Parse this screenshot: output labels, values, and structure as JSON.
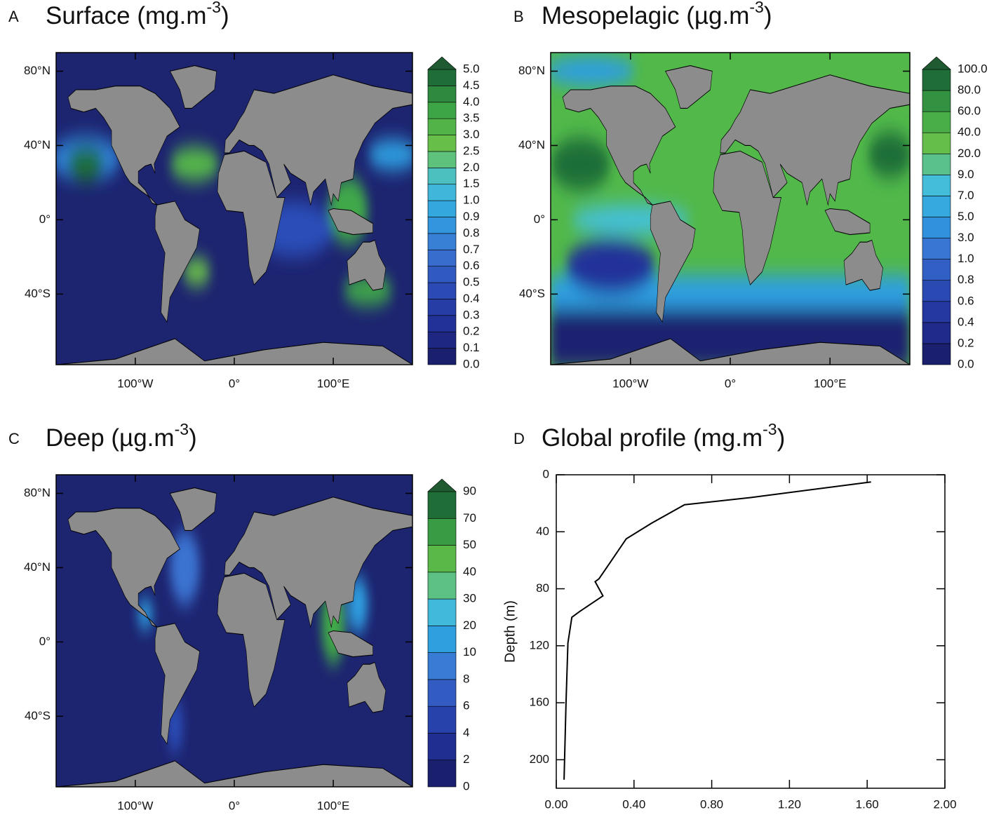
{
  "chart_data": [
    {
      "type": "map",
      "panel": "A",
      "title": "Surface (mg.m",
      "title_superscript": "-3",
      "title_end": ")",
      "xlim": [
        -180,
        180
      ],
      "ylim": [
        -78,
        90
      ],
      "xticks": [
        {
          "value": -100,
          "label": "100°W"
        },
        {
          "value": 0,
          "label": "0°"
        },
        {
          "value": 100,
          "label": "100°E"
        }
      ],
      "yticks": [
        {
          "value": 80,
          "label": "80°N"
        },
        {
          "value": 40,
          "label": "40°N"
        },
        {
          "value": 0,
          "label": "0°"
        },
        {
          "value": -40,
          "label": "40°S"
        }
      ],
      "ocean_color": "#1d2470",
      "land_color": "#8c8c8c",
      "colorbar": {
        "ticks": [
          {
            "value": 0,
            "label": "0.0"
          },
          {
            "value": 0.1,
            "label": "0.1"
          },
          {
            "value": 0.2,
            "label": "0.2"
          },
          {
            "value": 0.3,
            "label": "0.3"
          },
          {
            "value": 0.4,
            "label": "0.4"
          },
          {
            "value": 0.5,
            "label": "0.5"
          },
          {
            "value": 0.6,
            "label": "0.6"
          },
          {
            "value": 0.7,
            "label": "0.7"
          },
          {
            "value": 0.8,
            "label": "0.8"
          },
          {
            "value": 0.9,
            "label": "0.9"
          },
          {
            "value": 1,
            "label": "1.0"
          },
          {
            "value": 1.5,
            "label": "1.5"
          },
          {
            "value": 2,
            "label": "2.0"
          },
          {
            "value": 2.5,
            "label": "2.5"
          },
          {
            "value": 3,
            "label": "3.0"
          },
          {
            "value": 3.5,
            "label": "3.5"
          },
          {
            "value": 4,
            "label": "4.0"
          },
          {
            "value": 4.5,
            "label": "4.5"
          },
          {
            "value": 5,
            "label": "5.0"
          }
        ],
        "palette": [
          "#1a1f6e",
          "#23329a",
          "#2c4db8",
          "#3a73d2",
          "#2f9fe0",
          "#45c0d8",
          "#6cc24a",
          "#40a848",
          "#1f6e37"
        ],
        "extend_color": "#1f5a30"
      }
    },
    {
      "type": "map",
      "panel": "B",
      "title": "Mesopelagic (µg.m",
      "title_superscript": "-3",
      "title_end": ")",
      "xlim": [
        -180,
        180
      ],
      "ylim": [
        -78,
        90
      ],
      "xticks": [
        {
          "value": -100,
          "label": "100°W"
        },
        {
          "value": 0,
          "label": "0°"
        },
        {
          "value": 100,
          "label": "100°E"
        }
      ],
      "yticks": [
        {
          "value": 80,
          "label": "80°N"
        },
        {
          "value": 40,
          "label": "40°N"
        },
        {
          "value": 0,
          "label": "0°"
        },
        {
          "value": -40,
          "label": "40°S"
        }
      ],
      "ocean_color": "#52b84a",
      "land_color": "#8c8c8c",
      "colorbar": {
        "ticks": [
          {
            "value": 0,
            "label": "0.0"
          },
          {
            "value": 0.2,
            "label": "0.2"
          },
          {
            "value": 0.4,
            "label": "0.4"
          },
          {
            "value": 0.6,
            "label": "0.6"
          },
          {
            "value": 0.8,
            "label": "0.8"
          },
          {
            "value": 1,
            "label": "1.0"
          },
          {
            "value": 3,
            "label": "3.0"
          },
          {
            "value": 5,
            "label": "5.0"
          },
          {
            "value": 7,
            "label": "7.0"
          },
          {
            "value": 9,
            "label": "9.0"
          },
          {
            "value": 20,
            "label": "20.0"
          },
          {
            "value": 40,
            "label": "40.0"
          },
          {
            "value": 60,
            "label": "60.0"
          },
          {
            "value": 80,
            "label": "80.0"
          },
          {
            "value": 100,
            "label": "100.0"
          }
        ],
        "palette": [
          "#1a1f6e",
          "#23329a",
          "#2c4db8",
          "#3a73d2",
          "#2f9fe0",
          "#45c0d8",
          "#6cc24a",
          "#40a848",
          "#1f6e37"
        ],
        "extend_color": "#1f5a30"
      }
    },
    {
      "type": "map",
      "panel": "C",
      "title": "Deep (µg.m",
      "title_superscript": "-3",
      "title_end": ")",
      "xlim": [
        -180,
        180
      ],
      "ylim": [
        -78,
        90
      ],
      "xticks": [
        {
          "value": -100,
          "label": "100°W"
        },
        {
          "value": 0,
          "label": "0°"
        },
        {
          "value": 100,
          "label": "100°E"
        }
      ],
      "yticks": [
        {
          "value": 80,
          "label": "80°N"
        },
        {
          "value": 40,
          "label": "40°N"
        },
        {
          "value": 0,
          "label": "0°"
        },
        {
          "value": -40,
          "label": "40°S"
        }
      ],
      "ocean_color": "#1d2470",
      "land_color": "#8c8c8c",
      "colorbar": {
        "ticks": [
          0,
          2,
          4,
          6,
          8,
          10,
          20,
          30,
          40,
          50,
          70,
          90
        ],
        "palette": [
          "#1a1f6e",
          "#23329a",
          "#2c4db8",
          "#3a73d2",
          "#2f9fe0",
          "#45c0d8",
          "#6cc24a",
          "#40a848",
          "#1f6e37"
        ],
        "extend_color": "#1f5a30"
      }
    },
    {
      "type": "line",
      "panel": "D",
      "title": "Global profile (mg.m",
      "title_superscript": "-3",
      "title_end": ")",
      "y_label": "Depth (m)",
      "color": "#000000",
      "x": [
        1.62,
        1.0,
        0.66,
        0.49,
        0.36,
        0.28,
        0.22,
        0.2,
        0.24,
        0.12,
        0.08,
        0.06,
        0.05,
        0.04
      ],
      "values": [
        5,
        16,
        21,
        34,
        45,
        61,
        73,
        75,
        85,
        96,
        100,
        118,
        160,
        214
      ],
      "xlim": [
        0,
        2
      ],
      "ylim": [
        220,
        0
      ],
      "xticks": [
        {
          "value": 0,
          "label": "0.00"
        },
        {
          "value": 0.4,
          "label": "0.40"
        },
        {
          "value": 0.8,
          "label": "0.80"
        },
        {
          "value": 1.2,
          "label": "1.20"
        },
        {
          "value": 1.6,
          "label": "1.60"
        },
        {
          "value": 2,
          "label": "2.00"
        }
      ],
      "yticks": [
        0,
        40,
        80,
        120,
        160,
        200
      ]
    }
  ]
}
